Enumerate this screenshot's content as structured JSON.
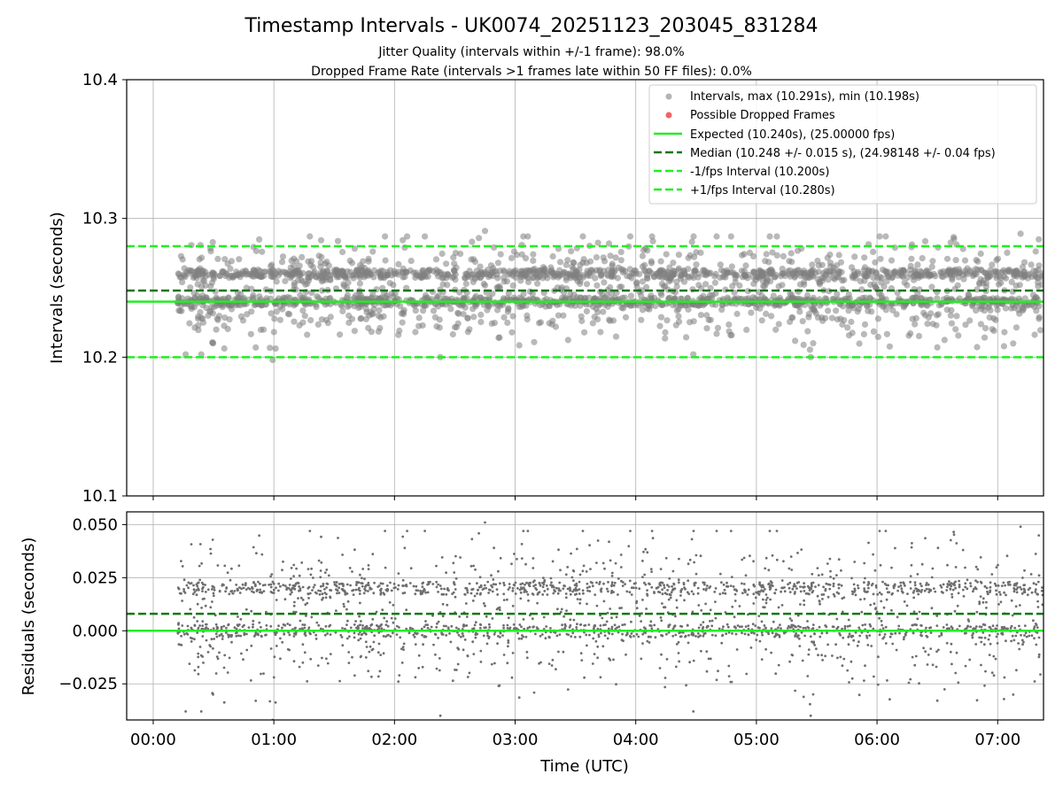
{
  "title": "Timestamp Intervals - UK0074_20251123_203045_831284",
  "subtitle_1": "Jitter Quality (intervals within +/-1 frame): 98.0%",
  "subtitle_2": "Dropped Frame Rate (intervals >1 frames late within 50 FF files): 0.0%",
  "colors": {
    "points": "#808080",
    "dropped": "#f04848",
    "expected": "#22ee22",
    "median": "#117711",
    "bound": "#22ee22",
    "grid": "#b0b0b0"
  },
  "chart_data": [
    {
      "id": "intervals",
      "type": "scatter",
      "ylabel": "Intervals (seconds)",
      "ylim": [
        10.1,
        10.4
      ],
      "yticks": [
        10.1,
        10.2,
        10.3,
        10.4
      ],
      "ytick_labels": [
        "10.1",
        "10.2",
        "10.3",
        "10.4"
      ],
      "xlim_hours": [
        -0.22,
        7.38
      ],
      "grid": true,
      "legend_position": "top-right",
      "series": {
        "name": "Intervals",
        "start_hour": 0.2,
        "end_hour": 7.38,
        "count": 2450,
        "min": 10.198,
        "max": 10.291,
        "interval_s": 10.248,
        "cluster_low": 10.24,
        "cluster_high": 10.26,
        "outliers": [
          {
            "hour": 0.99,
            "value": 10.198
          },
          {
            "hour": 2.75,
            "value": 10.291
          },
          {
            "hour": 2.38,
            "value": 10.2
          },
          {
            "hour": 5.45,
            "value": 10.2
          },
          {
            "hour": 7.19,
            "value": 10.289
          },
          {
            "hour": 0.85,
            "value": 10.207
          }
        ]
      },
      "lines": {
        "expected": 10.24,
        "median": 10.248,
        "lower": 10.2,
        "upper": 10.28
      },
      "legend": [
        {
          "key": "intervals",
          "label": "Intervals, max (10.291s), min (10.198s)"
        },
        {
          "key": "dropped",
          "label": "Possible Dropped Frames"
        },
        {
          "key": "expected",
          "label": "Expected (10.240s), (25.00000 fps)"
        },
        {
          "key": "median",
          "label": "Median (10.248 +/- 0.015 s), (24.98148 +/- 0.04 fps)"
        },
        {
          "key": "lower",
          "label": "-1/fps Interval (10.200s)"
        },
        {
          "key": "upper",
          "label": "+1/fps Interval (10.280s)"
        }
      ]
    },
    {
      "id": "residuals",
      "type": "scatter",
      "ylabel": "Residuals (seconds)",
      "xlabel": "Time (UTC)",
      "ylim": [
        -0.042,
        0.056
      ],
      "yticks": [
        -0.025,
        0.0,
        0.025,
        0.05
      ],
      "ytick_labels": [
        "−0.025",
        "0.000",
        "0.025",
        "0.050"
      ],
      "xlim_hours": [
        -0.22,
        7.38
      ],
      "xticks_hours": [
        0,
        1,
        2,
        3,
        4,
        5,
        6,
        7
      ],
      "xtick_labels": [
        "00:00",
        "01:00",
        "02:00",
        "03:00",
        "04:00",
        "05:00",
        "06:00",
        "07:00"
      ],
      "grid": true,
      "lines": {
        "expected": 0.0,
        "median": 0.008
      }
    }
  ]
}
